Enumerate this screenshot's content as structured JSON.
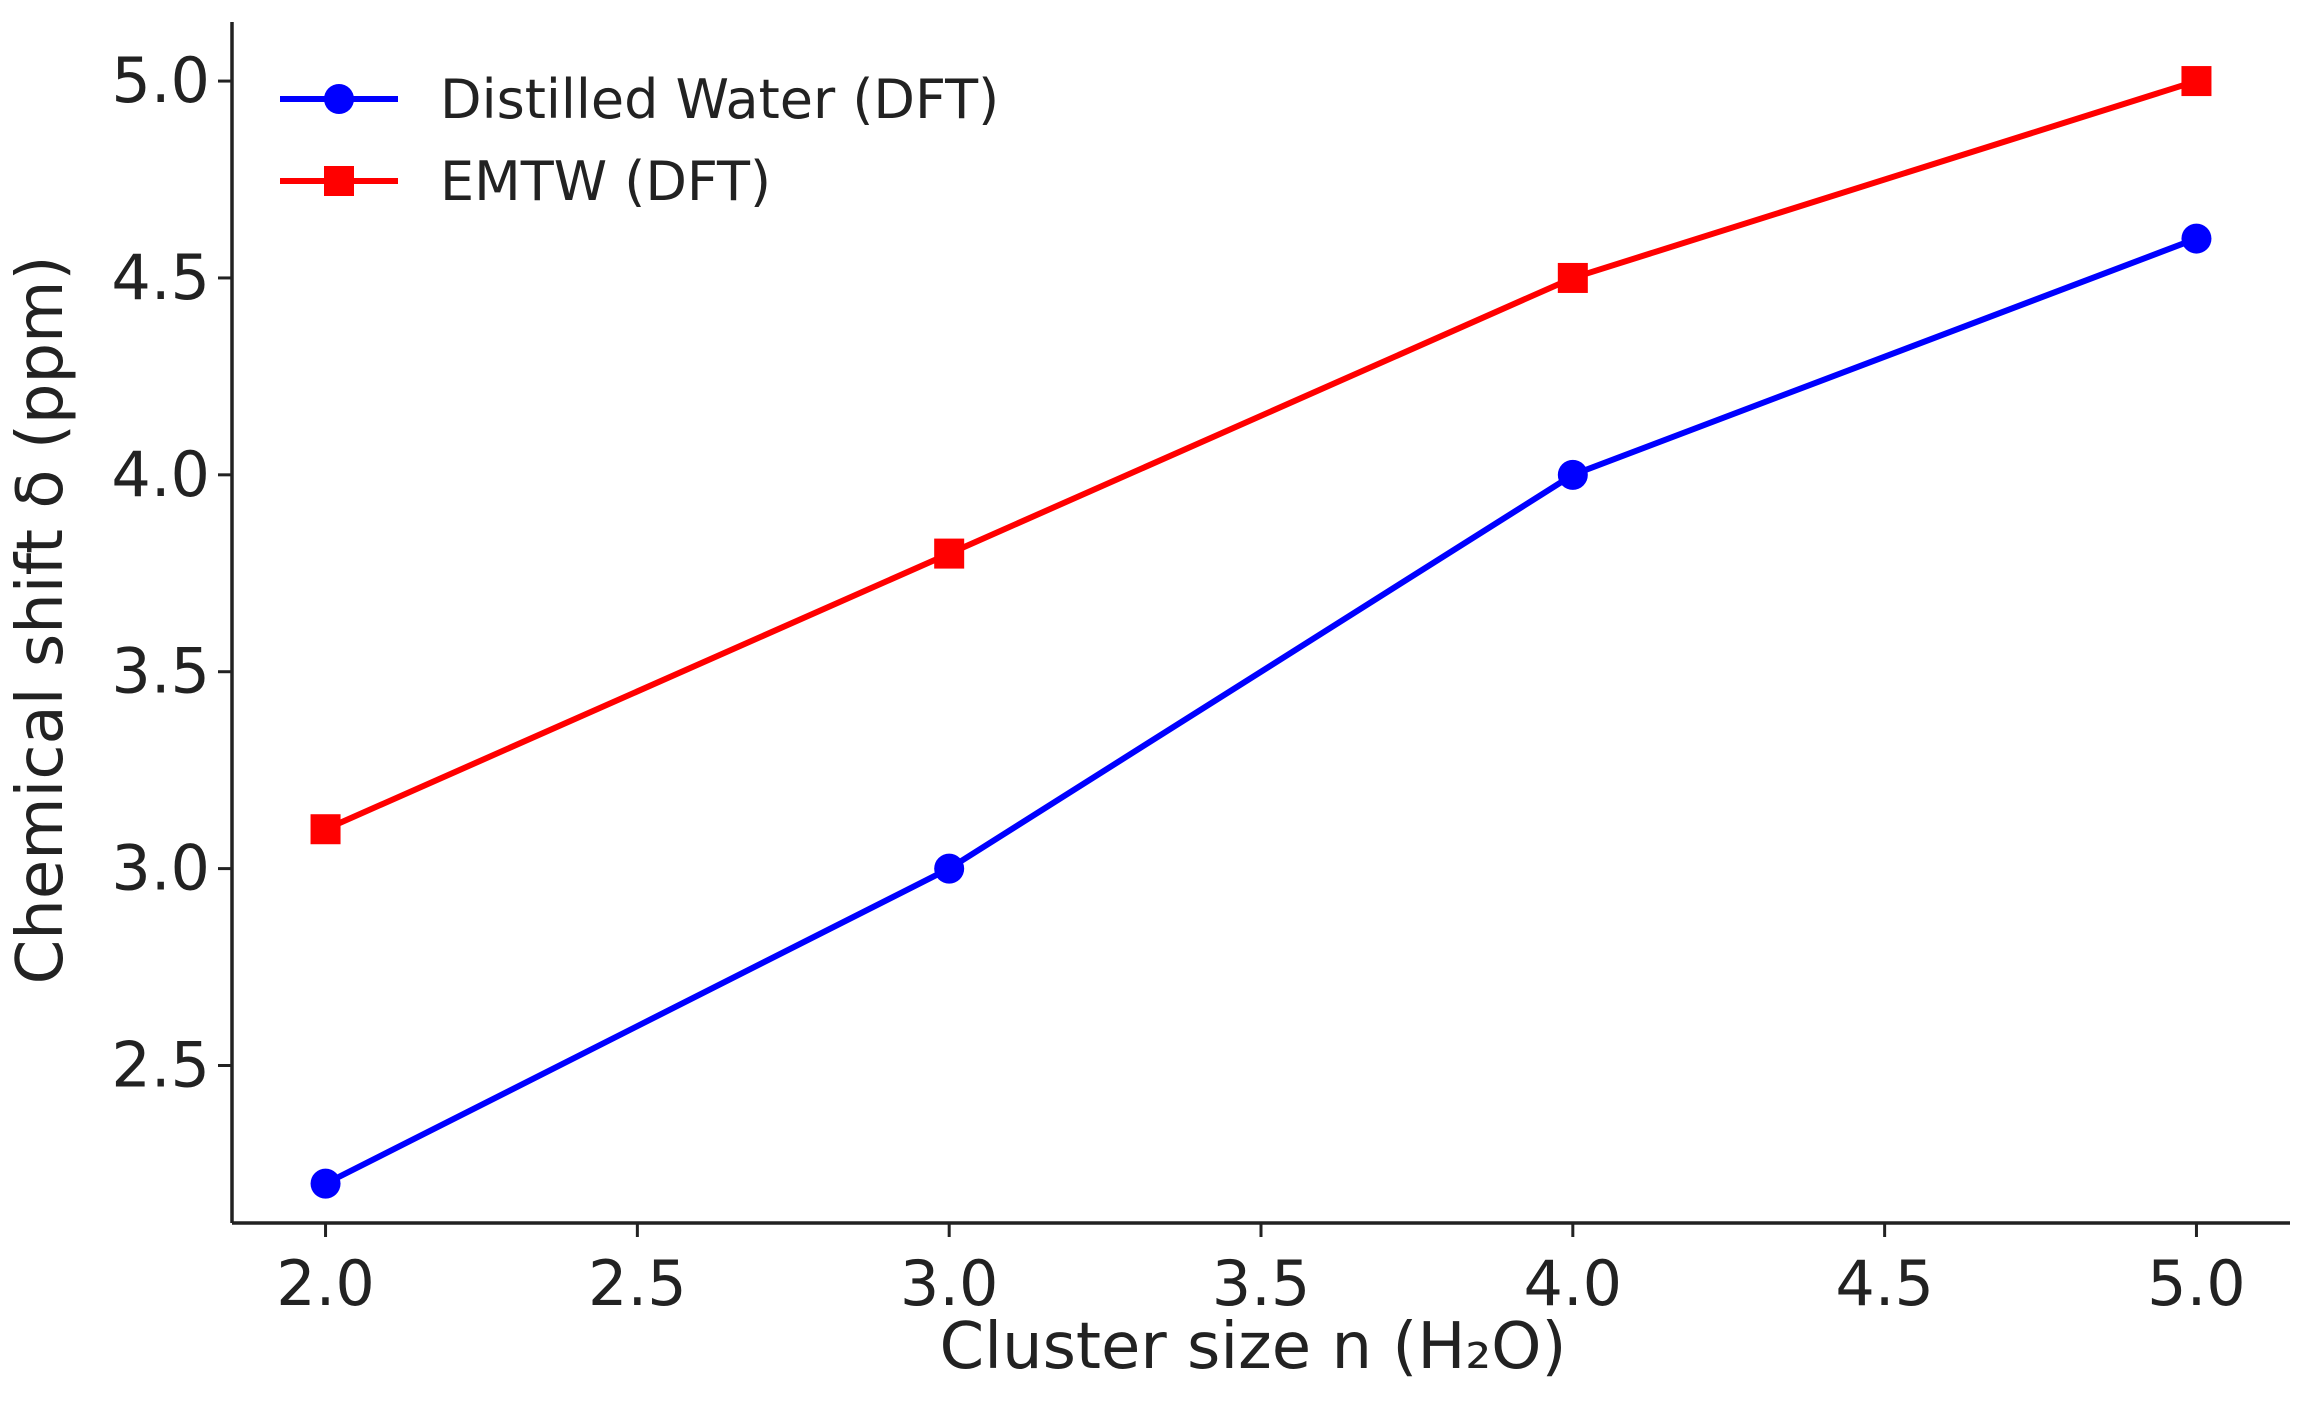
{
  "chart_data": {
    "type": "line",
    "title": "",
    "xlabel": "Cluster size n (H₂O)",
    "ylabel": "Chemical shift δ (ppm)",
    "xlim": [
      1.85,
      5.15
    ],
    "ylim": [
      2.1,
      5.15
    ],
    "x": [
      2.0,
      3.0,
      4.0,
      5.0
    ],
    "xticks": [
      2.0,
      2.5,
      3.0,
      3.5,
      4.0,
      4.5,
      5.0
    ],
    "xtick_labels": [
      "2.0",
      "2.5",
      "3.0",
      "3.5",
      "4.0",
      "4.5",
      "5.0"
    ],
    "yticks": [
      2.5,
      3.0,
      3.5,
      4.0,
      4.5,
      5.0
    ],
    "ytick_labels": [
      "2.5",
      "3.0",
      "3.5",
      "4.0",
      "4.5",
      "5.0"
    ],
    "grid": false,
    "legend_position": "top-left",
    "series": [
      {
        "name": "Distilled Water (DFT)",
        "values": [
          2.2,
          3.0,
          4.0,
          4.6
        ],
        "color": "#0000ff",
        "marker": "circle"
      },
      {
        "name": "EMTW (DFT)",
        "values": [
          3.1,
          3.8,
          4.5,
          5.0
        ],
        "color": "#ff0000",
        "marker": "square"
      }
    ]
  }
}
